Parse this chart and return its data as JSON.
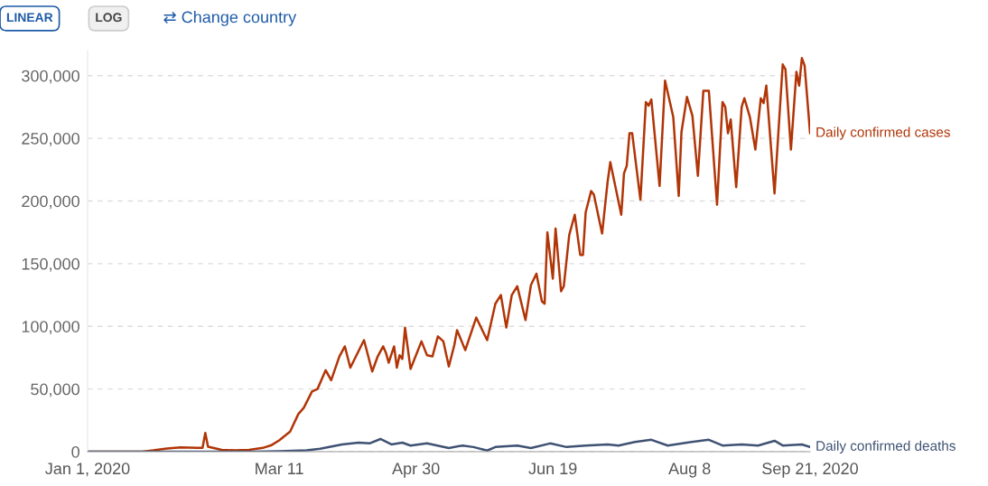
{
  "chart_data": {
    "type": "line",
    "annotations": [
      "LINEAR",
      "LOG",
      "⇄ Change country"
    ],
    "xlim": [
      "2020-01-01",
      "2020-09-21"
    ],
    "xticks": [
      {
        "value": "2020-01-01",
        "label": "Jan 1, 2020"
      },
      {
        "value": "2020-03-11",
        "label": "Mar 11"
      },
      {
        "value": "2020-04-30",
        "label": "Apr 30"
      },
      {
        "value": "2020-06-19",
        "label": "Jun 19"
      },
      {
        "value": "2020-08-08",
        "label": "Aug 8"
      },
      {
        "value": "2020-09-21",
        "label": "Sep 21, 2020"
      }
    ],
    "ylim": [
      0,
      320000
    ],
    "yticks": [
      0,
      {
        "value": 50000,
        "label": "50,000"
      },
      {
        "value": 100000,
        "label": "100,000"
      },
      {
        "value": 150000,
        "label": "150,000"
      },
      {
        "value": 200000,
        "label": "200,000"
      },
      {
        "value": 250000,
        "label": "250,000"
      },
      {
        "value": 300000,
        "label": "300,000"
      }
    ],
    "grid": "y",
    "series": [
      {
        "name": "Daily confirmed cases",
        "color": "#b13507",
        "x": [
          "2020-01-01",
          "2020-01-21",
          "2020-01-25",
          "2020-01-30",
          "2020-02-04",
          "2020-02-10",
          "2020-02-12",
          "2020-02-13",
          "2020-02-14",
          "2020-02-19",
          "2020-02-24",
          "2020-02-29",
          "2020-03-05",
          "2020-03-08",
          "2020-03-11",
          "2020-03-15",
          "2020-03-18",
          "2020-03-20",
          "2020-03-23",
          "2020-03-25",
          "2020-03-28",
          "2020-03-30",
          "2020-04-02",
          "2020-04-04",
          "2020-04-06",
          "2020-04-11",
          "2020-04-14",
          "2020-04-16",
          "2020-04-18",
          "2020-04-19",
          "2020-04-20",
          "2020-04-22",
          "2020-04-23",
          "2020-04-24",
          "2020-04-25",
          "2020-04-26",
          "2020-04-28",
          "2020-05-02",
          "2020-05-04",
          "2020-05-06",
          "2020-05-08",
          "2020-05-10",
          "2020-05-12",
          "2020-05-14",
          "2020-05-15",
          "2020-05-18",
          "2020-05-22",
          "2020-05-26",
          "2020-05-29",
          "2020-05-31",
          "2020-06-02",
          "2020-06-04",
          "2020-06-06",
          "2020-06-09",
          "2020-06-11",
          "2020-06-13",
          "2020-06-15",
          "2020-06-16",
          "2020-06-17",
          "2020-06-19",
          "2020-06-20",
          "2020-06-22",
          "2020-06-23",
          "2020-06-25",
          "2020-06-27",
          "2020-06-29",
          "2020-06-30",
          "2020-07-01",
          "2020-07-03",
          "2020-07-04",
          "2020-07-07",
          "2020-07-09",
          "2020-07-10",
          "2020-07-14",
          "2020-07-15",
          "2020-07-16",
          "2020-07-17",
          "2020-07-18",
          "2020-07-21",
          "2020-07-23",
          "2020-07-24",
          "2020-07-25",
          "2020-07-28",
          "2020-07-30",
          "2020-08-02",
          "2020-08-04",
          "2020-08-05",
          "2020-08-07",
          "2020-08-09",
          "2020-08-11",
          "2020-08-13",
          "2020-08-15",
          "2020-08-18",
          "2020-08-20",
          "2020-08-21",
          "2020-08-22",
          "2020-08-23",
          "2020-08-25",
          "2020-08-27",
          "2020-08-28",
          "2020-08-30",
          "2020-09-01",
          "2020-09-03",
          "2020-09-04",
          "2020-09-05",
          "2020-09-08",
          "2020-09-11",
          "2020-09-12",
          "2020-09-14",
          "2020-09-16",
          "2020-09-17",
          "2020-09-18",
          "2020-09-19",
          "2020-09-21"
        ],
        "values": [
          0,
          0,
          1000,
          2500,
          3500,
          3000,
          3000,
          15000,
          4000,
          1500,
          1000,
          1500,
          3000,
          5000,
          9000,
          16000,
          30000,
          35000,
          48000,
          50000,
          65000,
          57000,
          76000,
          84000,
          67000,
          89000,
          64000,
          76000,
          84000,
          79000,
          71000,
          84000,
          67000,
          77000,
          74000,
          99000,
          66000,
          88000,
          77000,
          76000,
          92000,
          88000,
          68000,
          85000,
          97000,
          81000,
          107000,
          89000,
          118000,
          125000,
          99000,
          125000,
          132000,
          105000,
          133000,
          142000,
          120000,
          118000,
          175000,
          138000,
          178000,
          128000,
          132000,
          173000,
          189000,
          157000,
          157000,
          191000,
          208000,
          205000,
          174000,
          215000,
          231000,
          189000,
          222000,
          228000,
          254000,
          254000,
          201000,
          279000,
          276000,
          281000,
          212000,
          296000,
          267000,
          204000,
          255000,
          283000,
          268000,
          220000,
          288000,
          288000,
          197000,
          279000,
          275000,
          254000,
          265000,
          211000,
          275000,
          282000,
          267000,
          241000,
          282000,
          278000,
          292000,
          206000,
          309000,
          305000,
          241000,
          303000,
          292000,
          314000,
          308000,
          254000
        ]
      },
      {
        "name": "Daily confirmed deaths",
        "color": "#3f5273",
        "x": [
          "2020-01-01",
          "2020-03-01",
          "2020-03-11",
          "2020-03-21",
          "2020-03-26",
          "2020-04-03",
          "2020-04-09",
          "2020-04-13",
          "2020-04-17",
          "2020-04-21",
          "2020-04-25",
          "2020-04-28",
          "2020-05-04",
          "2020-05-12",
          "2020-05-17",
          "2020-05-21",
          "2020-05-26",
          "2020-05-29",
          "2020-06-06",
          "2020-06-11",
          "2020-06-18",
          "2020-06-24",
          "2020-07-01",
          "2020-07-09",
          "2020-07-13",
          "2020-07-19",
          "2020-07-25",
          "2020-07-31",
          "2020-08-07",
          "2020-08-15",
          "2020-08-20",
          "2020-08-27",
          "2020-09-02",
          "2020-09-08",
          "2020-09-11",
          "2020-09-18",
          "2020-09-21"
        ],
        "values": [
          0,
          0,
          300,
          1000,
          2300,
          5800,
          7200,
          6600,
          10100,
          5800,
          7200,
          4900,
          6600,
          2900,
          4900,
          3700,
          900,
          3700,
          4900,
          2900,
          6600,
          3700,
          4900,
          5800,
          4900,
          7800,
          9500,
          4900,
          7200,
          9500,
          4900,
          5800,
          4900,
          8700,
          4900,
          5800,
          3700
        ]
      }
    ]
  }
}
